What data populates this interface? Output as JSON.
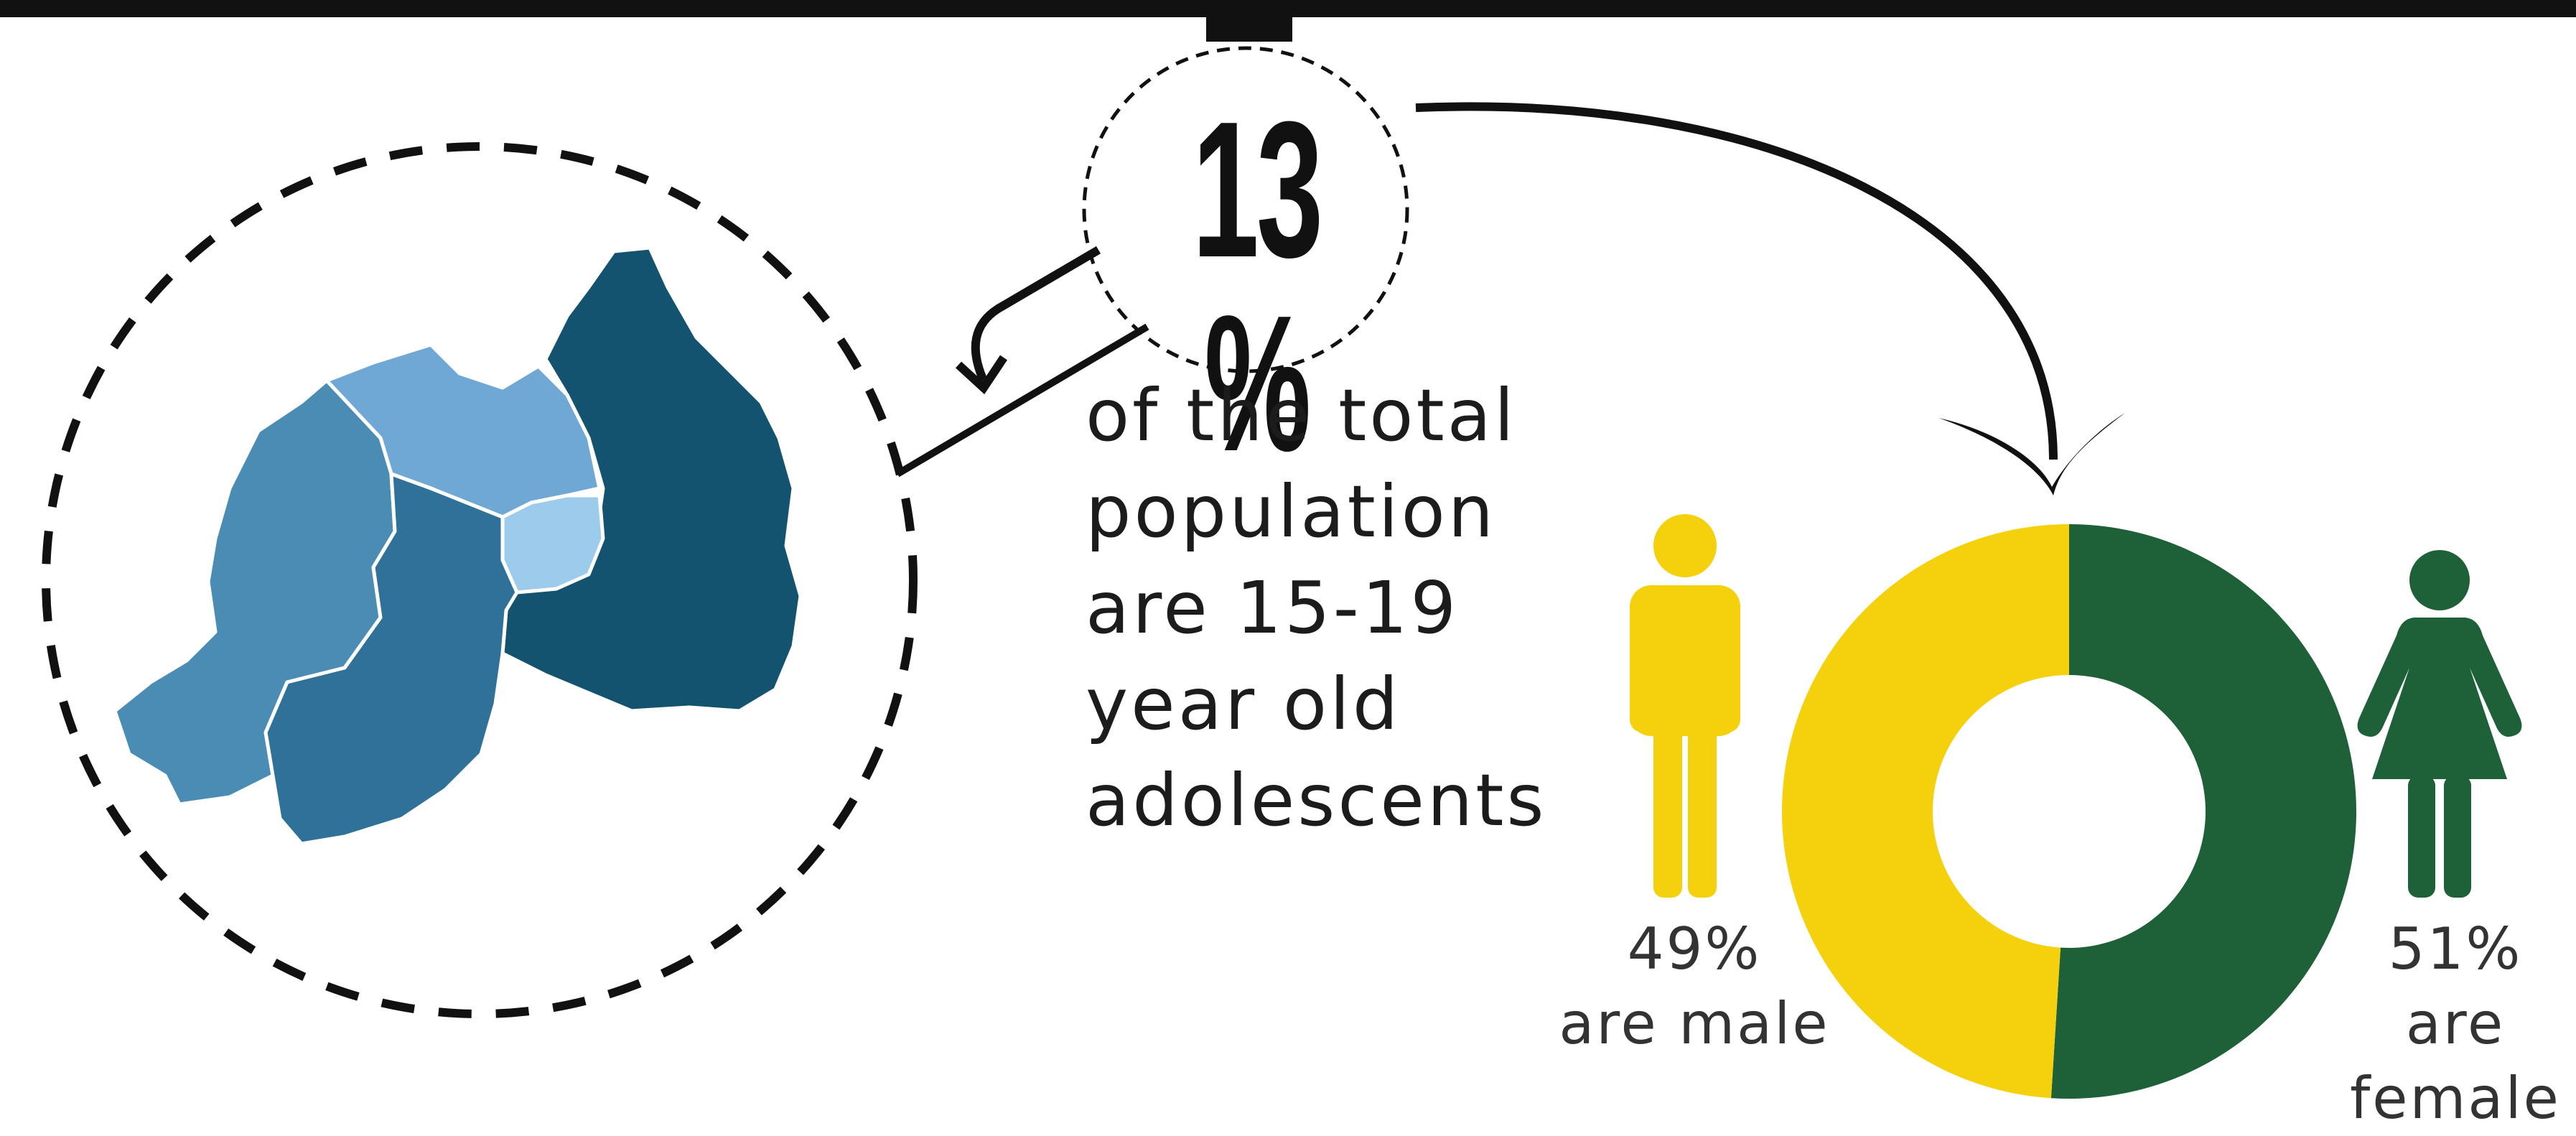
{
  "stat": {
    "value": "13 %"
  },
  "description": [
    "of the total",
    "population",
    "are 15-19",
    "year old",
    "adolescents"
  ],
  "gender_split": {
    "male": {
      "percent": "49%",
      "label": "are male",
      "color": "#F5D00C"
    },
    "female": {
      "percent": "51%",
      "label_line1": "are",
      "label_line2": "female",
      "color": "#1E6038"
    }
  },
  "chart_data": {
    "type": "pie",
    "categories": [
      "male",
      "female"
    ],
    "values": [
      49,
      51
    ],
    "colors": [
      "#F5D00C",
      "#1E6038"
    ],
    "donut": true
  },
  "map_colors": {
    "region_east": "#14536F",
    "region_west": "#4A8CB4",
    "region_south": "#2F7199",
    "region_north": "#6FA8D5",
    "region_kigali": "#9CCBEC"
  }
}
